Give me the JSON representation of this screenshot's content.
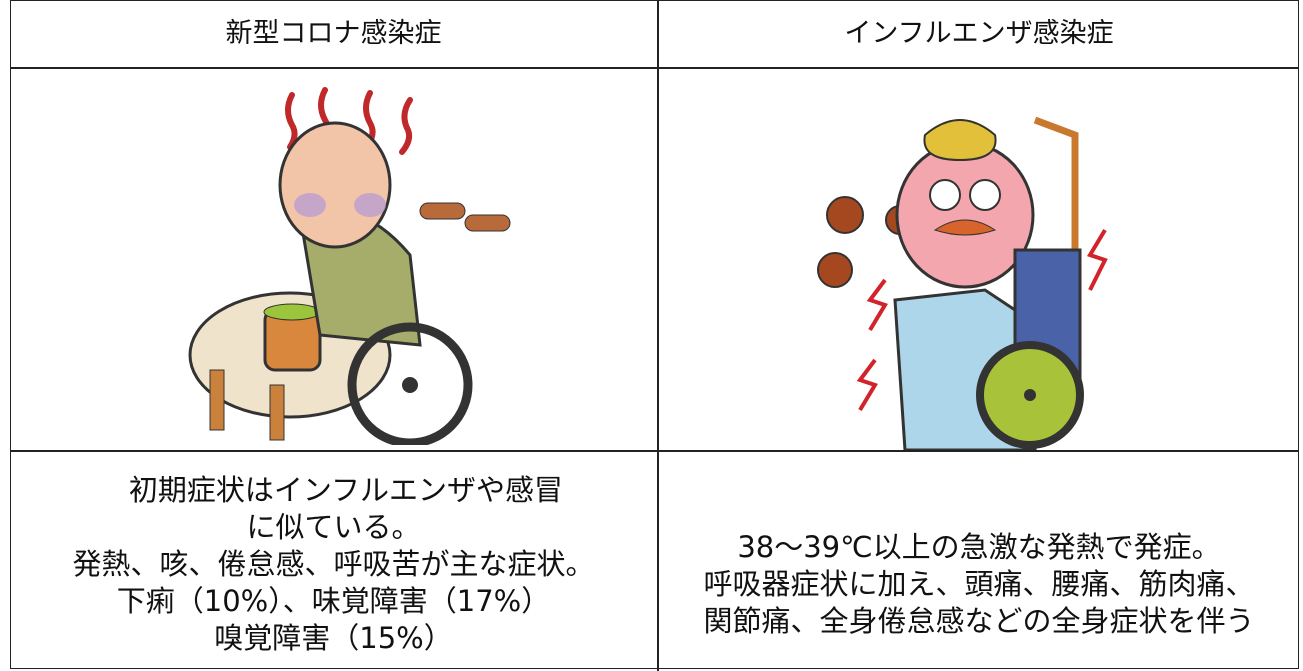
{
  "table": {
    "header": [
      "新型コロナ感染症",
      "インフルエンザ感染症"
    ],
    "cells": [
      [
        "初期症状はインフルエンザや感冒",
        "に似ている。",
        "発熱、咳、倦怠感、呼吸苦が主な症状。",
        "下痢（10%）、味覚障害（17%）",
        "嗅覚障害（15%）"
      ],
      [
        "38〜39℃以上の急激な発熱で発症。",
        "呼吸器症状に加え、頭痛、腰痛、筋肉痛、",
        "関節痛、全身倦怠感などの全身症状を伴う"
      ]
    ]
  }
}
